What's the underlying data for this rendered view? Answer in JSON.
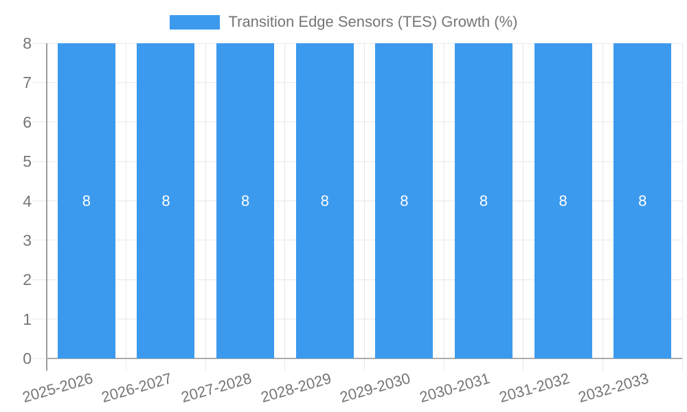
{
  "chart_data": {
    "type": "bar",
    "title": "",
    "xlabel": "",
    "ylabel": "",
    "categories": [
      "2025-2026",
      "2026-2027",
      "2027-2028",
      "2028-2029",
      "2029-2030",
      "2030-2031",
      "2031-2032",
      "2032-2033"
    ],
    "series": [
      {
        "name": "Transition Edge Sensors (TES) Growth (%)",
        "values": [
          8,
          8,
          8,
          8,
          8,
          8,
          8,
          8
        ],
        "color": "#3C9AEE"
      }
    ],
    "ylim": [
      0,
      8
    ],
    "yticks": [
      0,
      1,
      2,
      3,
      4,
      5,
      6,
      7,
      8
    ],
    "grid": true,
    "legend_position": "top",
    "bar_value_labels": true,
    "xtick_rotation_deg": -16,
    "colors": {
      "bar": "#3C9AEE",
      "axis_text": "#757575",
      "grid_line": "#E8E8E8",
      "y_axis_line": "#9C9C9C",
      "x_axis_line": "#ABABAB",
      "value_label": "#FFFFFF",
      "background": "#FFFFFF"
    }
  }
}
